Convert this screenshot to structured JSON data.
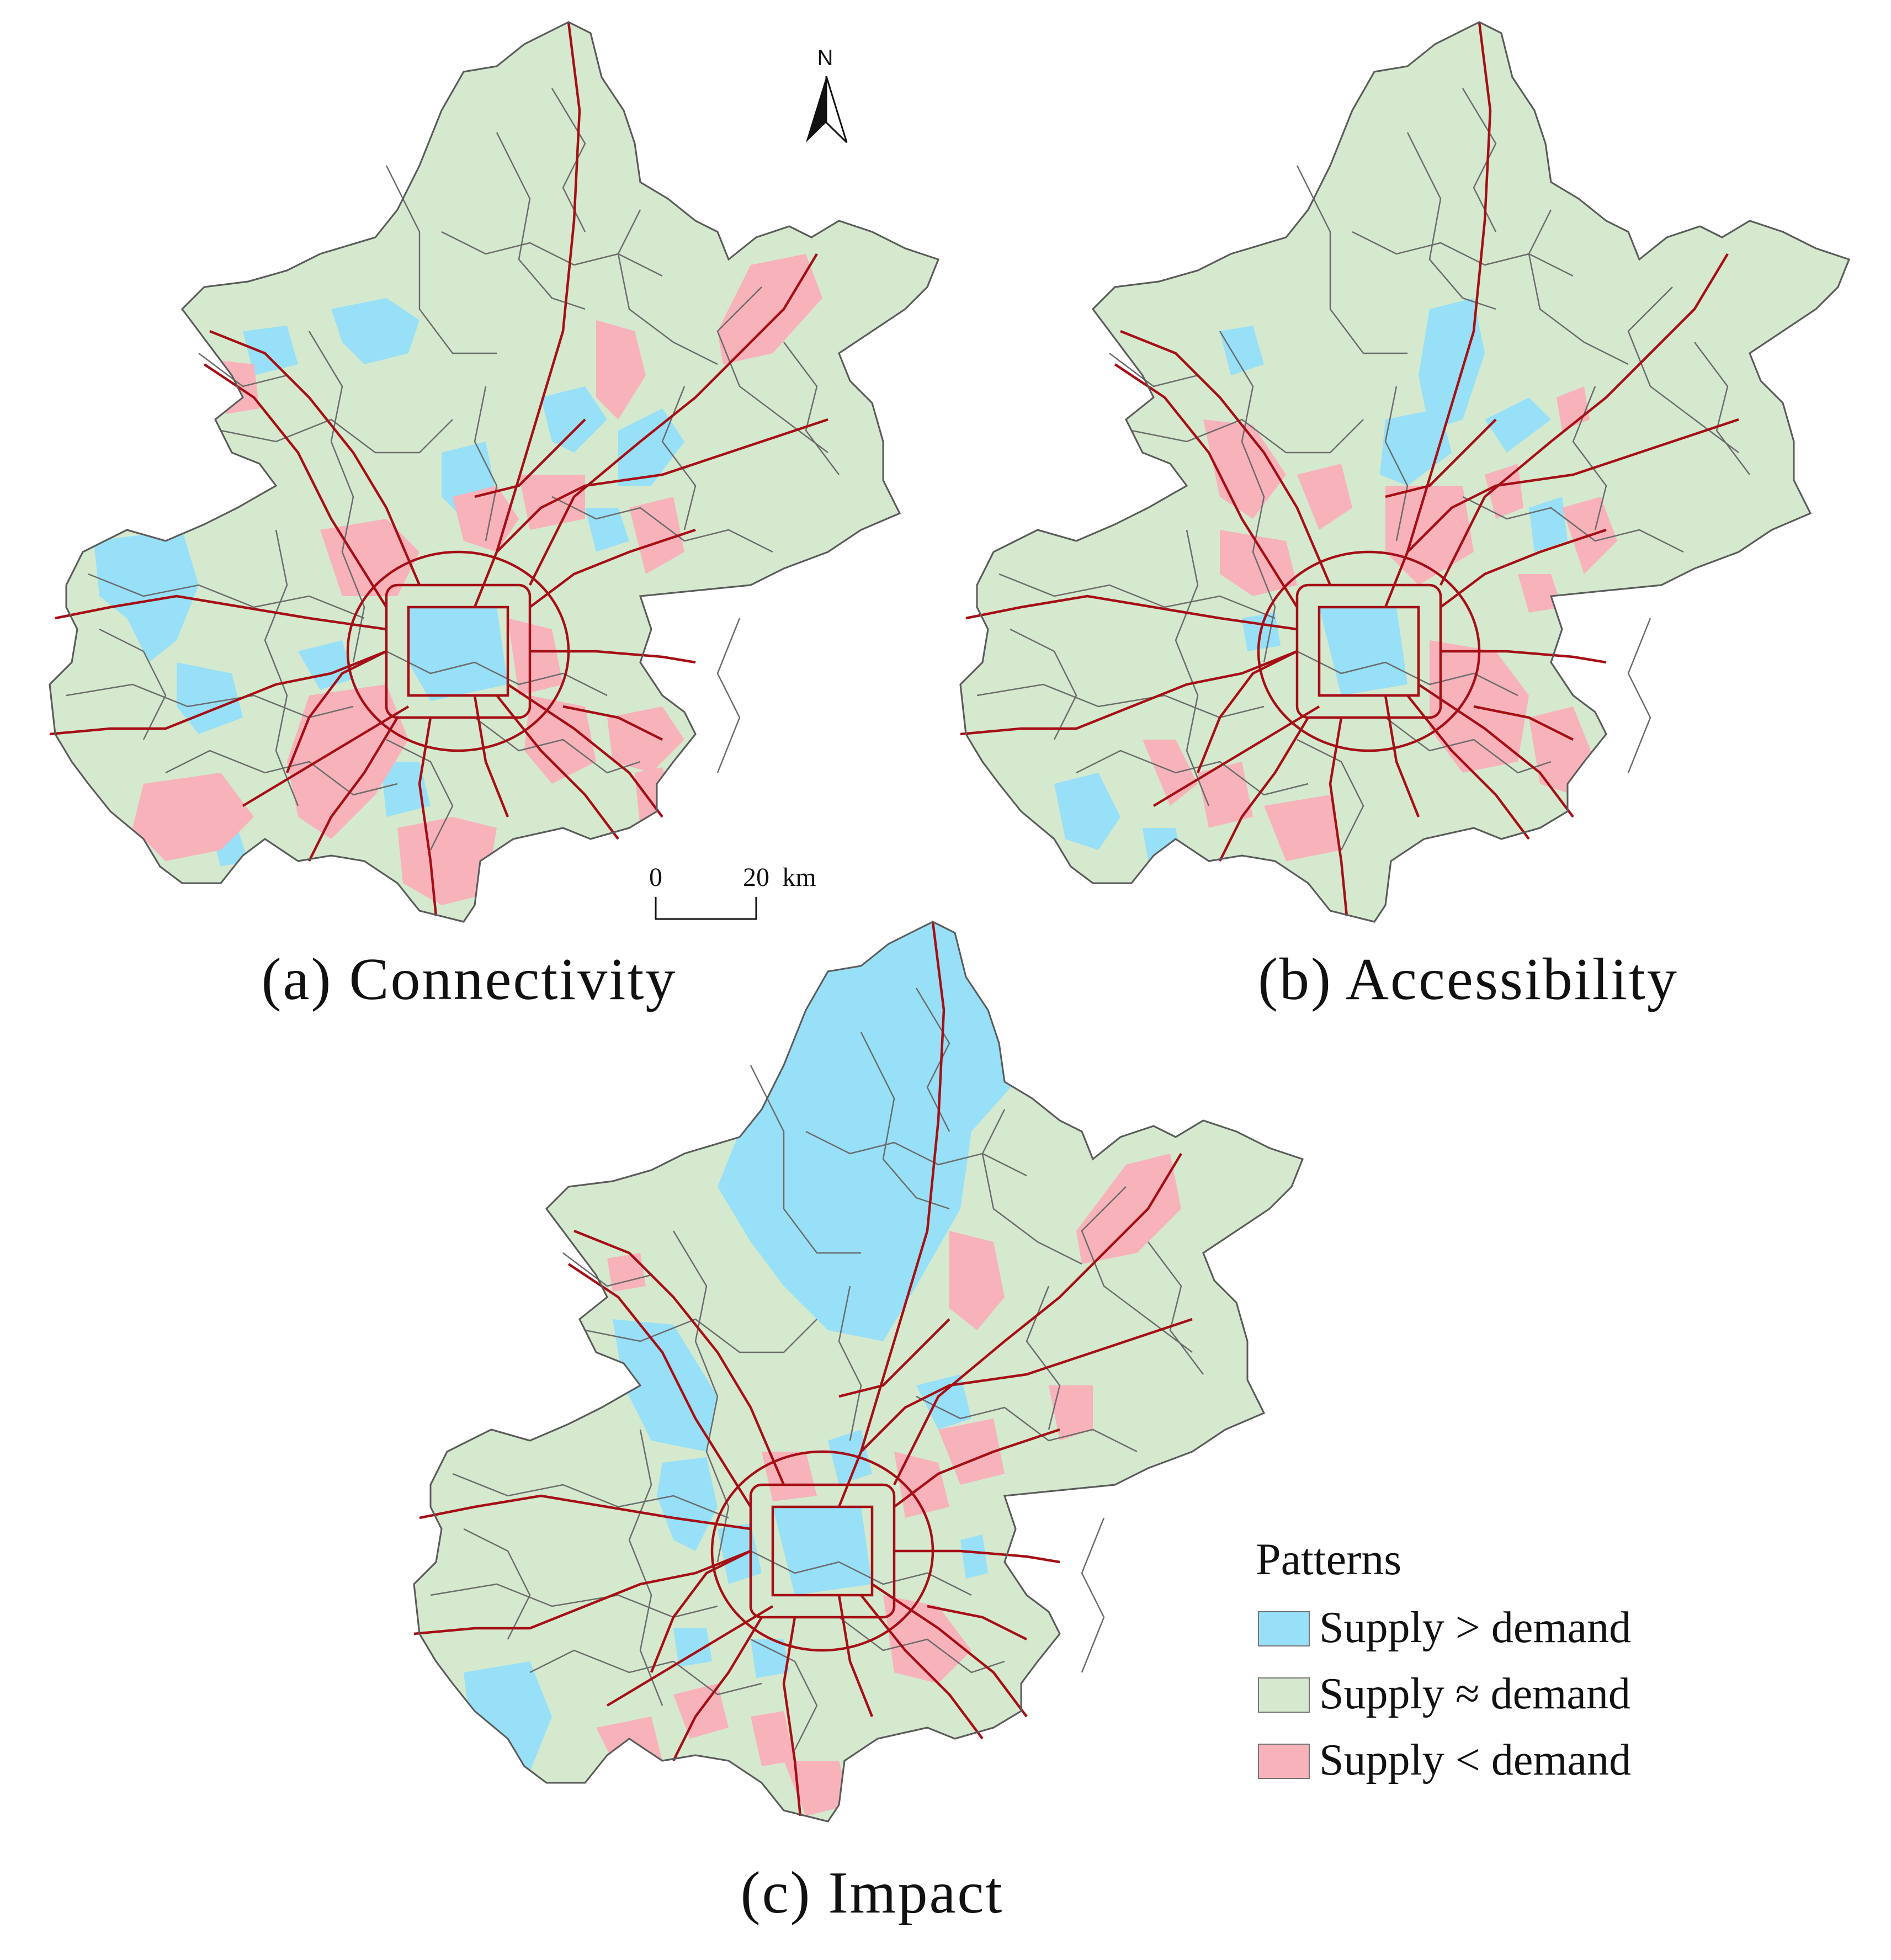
{
  "panels": [
    {
      "id": "a",
      "caption": "(a) Connectivity"
    },
    {
      "id": "b",
      "caption": "(b) Accessibility"
    },
    {
      "id": "c",
      "caption": "(c) Impact"
    }
  ],
  "legend": {
    "title": "Patterns",
    "items": [
      {
        "label": "Supply > demand",
        "color": "#97e0f7"
      },
      {
        "label": "Supply ≈ demand",
        "color": "#d5e9cf"
      },
      {
        "label": "Supply < demand",
        "color": "#f7b2ba"
      }
    ]
  },
  "north_arrow": {
    "label": "N"
  },
  "scale_bar": {
    "start": "0",
    "end": "20",
    "unit": "km"
  },
  "colors": {
    "road": "#a50f15",
    "boundary": "#6b6b6b",
    "supply_gt_demand": "#97e0f7",
    "supply_eq_demand": "#d5e9cf",
    "supply_lt_demand": "#f7b2ba"
  }
}
